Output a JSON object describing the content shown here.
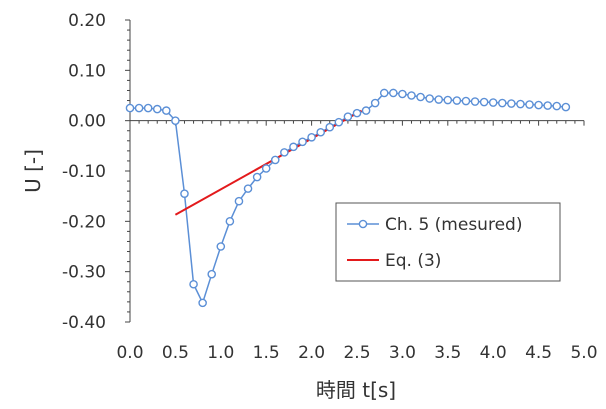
{
  "chart_data": {
    "type": "line",
    "title": "",
    "xlabel": "時間 t[s]",
    "ylabel": "U [-]",
    "xlim": [
      0.0,
      5.0
    ],
    "ylim": [
      -0.4,
      0.2
    ],
    "x_ticks": [
      "0.0",
      "0.5",
      "1.0",
      "1.5",
      "2.0",
      "2.5",
      "3.0",
      "3.5",
      "4.0",
      "4.5",
      "5.0"
    ],
    "y_ticks": [
      "0.20",
      "0.10",
      "0.00",
      "-0.10",
      "-0.20",
      "-0.30",
      "-0.40"
    ],
    "grid": false,
    "legend_position": "right",
    "series": [
      {
        "name": "Ch. 5 (mesured)",
        "color": "#5b8fd6",
        "style": "line-open-circles",
        "x": [
          0.0,
          0.1,
          0.2,
          0.3,
          0.4,
          0.5,
          0.6,
          0.7,
          0.8,
          0.9,
          1.0,
          1.1,
          1.2,
          1.3,
          1.4,
          1.5,
          1.6,
          1.7,
          1.8,
          1.9,
          2.0,
          2.1,
          2.2,
          2.3,
          2.4,
          2.5,
          2.6,
          2.7,
          2.8,
          2.9,
          3.0,
          3.1,
          3.2,
          3.3,
          3.4,
          3.5,
          3.6,
          3.7,
          3.8,
          3.9,
          4.0,
          4.1,
          4.2,
          4.3,
          4.4,
          4.5,
          4.6,
          4.7,
          4.8
        ],
        "y": [
          0.025,
          0.025,
          0.025,
          0.023,
          0.02,
          0.0,
          -0.145,
          -0.325,
          -0.362,
          -0.305,
          -0.25,
          -0.2,
          -0.16,
          -0.135,
          -0.112,
          -0.095,
          -0.078,
          -0.063,
          -0.052,
          -0.042,
          -0.033,
          -0.023,
          -0.013,
          -0.003,
          0.008,
          0.015,
          0.02,
          0.035,
          0.055,
          0.055,
          0.053,
          0.05,
          0.047,
          0.044,
          0.042,
          0.041,
          0.04,
          0.039,
          0.038,
          0.037,
          0.036,
          0.035,
          0.034,
          0.033,
          0.032,
          0.031,
          0.03,
          0.029,
          0.027
        ]
      },
      {
        "name": "Eq. (3)",
        "color": "#e31a1c",
        "style": "line",
        "x": [
          0.5,
          2.55
        ],
        "y": [
          -0.187,
          0.02
        ]
      }
    ]
  }
}
